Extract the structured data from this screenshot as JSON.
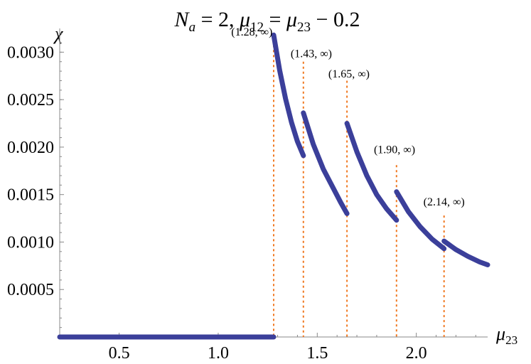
{
  "chart_data": {
    "type": "line",
    "title": "N_a = 2,  μ12 = μ23 − 0.2",
    "title_parts": {
      "n": "N",
      "n_sub": "a",
      "eq1": " = 2,   ",
      "mu1": "μ",
      "mu1_sub": "12",
      "eq2": " = ",
      "mu2": "μ",
      "mu2_sub": "23",
      "rest": " − 0.2"
    },
    "xlabel": "μ23",
    "xlabel_parts": {
      "mu": "μ",
      "sub": "23"
    },
    "ylabel": "χ",
    "xlim": [
      0.2,
      2.36
    ],
    "ylim": [
      0,
      0.00325
    ],
    "x_ticks": [
      0.5,
      1.0,
      1.5,
      2.0
    ],
    "x_tick_labels": [
      "0.5",
      "1.0",
      "1.5",
      "2.0"
    ],
    "y_ticks": [
      0.0005,
      0.001,
      0.0015,
      0.002,
      0.0025,
      0.003
    ],
    "y_tick_labels": [
      "0.0005",
      "0.0010",
      "0.0015",
      "0.0020",
      "0.0025",
      "0.0030"
    ],
    "series_color": "#3b3f9a",
    "vline_color": "#f07820",
    "series": [
      {
        "x": [
          0.2,
          1.28
        ],
        "y": [
          0,
          0
        ]
      },
      {
        "x": [
          1.28,
          1.31,
          1.34,
          1.37,
          1.4,
          1.43
        ],
        "y": [
          0.00318,
          0.00281,
          0.00251,
          0.00226,
          0.00206,
          0.00191
        ]
      },
      {
        "x": [
          1.43,
          1.48,
          1.53,
          1.58,
          1.62,
          1.65
        ],
        "y": [
          0.00236,
          0.00203,
          0.00177,
          0.00157,
          0.00141,
          0.0013
        ]
      },
      {
        "x": [
          1.65,
          1.7,
          1.75,
          1.8,
          1.85,
          1.9
        ],
        "y": [
          0.00225,
          0.00195,
          0.0017,
          0.0015,
          0.00135,
          0.00123
        ]
      },
      {
        "x": [
          1.9,
          1.96,
          2.02,
          2.08,
          2.14
        ],
        "y": [
          0.00153,
          0.00132,
          0.00116,
          0.00103,
          0.00093
        ]
      },
      {
        "x": [
          2.14,
          2.2,
          2.26,
          2.32,
          2.36
        ],
        "y": [
          0.00101,
          0.00092,
          0.00085,
          0.00079,
          0.00076
        ]
      }
    ],
    "thresholds": [
      {
        "x": 1.28,
        "top": 0.00318,
        "label": "(1.28, ∞)",
        "lx": 1.17,
        "ly": 0.00322
      },
      {
        "x": 1.43,
        "top": 0.0029,
        "label": "(1.43, ∞)",
        "lx": 1.47,
        "ly": 0.00299
      },
      {
        "x": 1.65,
        "top": 0.0027,
        "label": "(1.65, ∞)",
        "lx": 1.66,
        "ly": 0.00278
      },
      {
        "x": 1.9,
        "top": 0.00181,
        "label": "(1.90, ∞)",
        "lx": 1.89,
        "ly": 0.00198
      },
      {
        "x": 2.14,
        "top": 0.00128,
        "label": "(2.14, ∞)",
        "lx": 2.14,
        "ly": 0.00143
      }
    ]
  }
}
